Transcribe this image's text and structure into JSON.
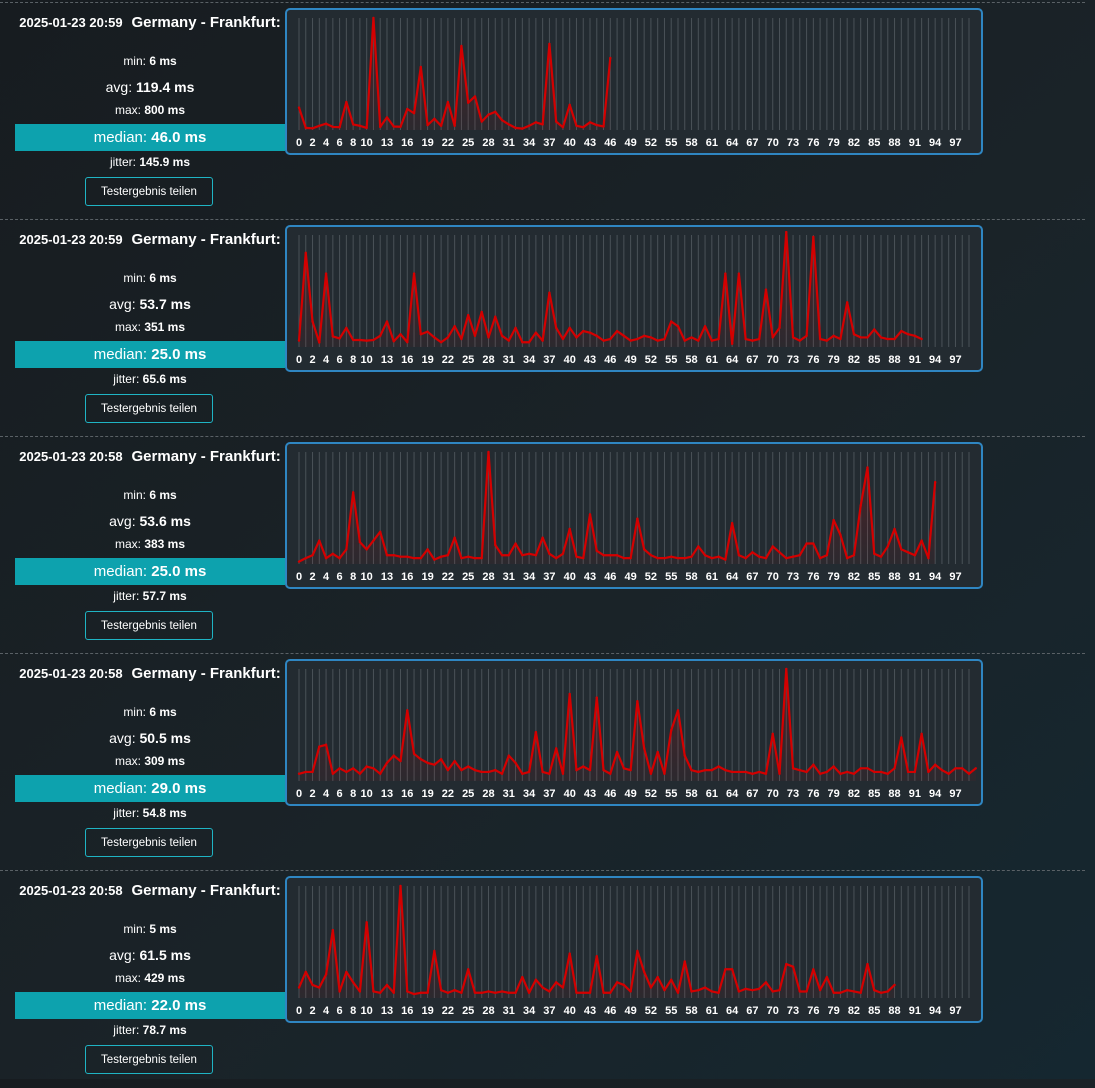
{
  "share_label": "Testergebnis teilen",
  "colors": {
    "accent": "#0da2ae",
    "line": "#d40000",
    "border": "#2f86c2"
  },
  "results": [
    {
      "datetime": "2025-01-23 20:59",
      "location": "Germany - Frankfurt:",
      "min_label": "min:",
      "min": "6 ms",
      "avg_label": "avg:",
      "avg": "119.4 ms",
      "max_label": "max:",
      "max": "800 ms",
      "median_label": "median:",
      "median": "46.0 ms",
      "jitter_label": "jitter:",
      "jitter": "145.9 ms"
    },
    {
      "datetime": "2025-01-23 20:59",
      "location": "Germany - Frankfurt:",
      "min_label": "min:",
      "min": "6 ms",
      "avg_label": "avg:",
      "avg": "53.7 ms",
      "max_label": "max:",
      "max": "351 ms",
      "median_label": "median:",
      "median": "25.0 ms",
      "jitter_label": "jitter:",
      "jitter": "65.6 ms"
    },
    {
      "datetime": "2025-01-23 20:58",
      "location": "Germany - Frankfurt:",
      "min_label": "min:",
      "min": "6 ms",
      "avg_label": "avg:",
      "avg": "53.6 ms",
      "max_label": "max:",
      "max": "383 ms",
      "median_label": "median:",
      "median": "25.0 ms",
      "jitter_label": "jitter:",
      "jitter": "57.7 ms"
    },
    {
      "datetime": "2025-01-23 20:58",
      "location": "Germany - Frankfurt:",
      "min_label": "min:",
      "min": "6 ms",
      "avg_label": "avg:",
      "avg": "50.5 ms",
      "max_label": "max:",
      "max": "309 ms",
      "median_label": "median:",
      "median": "29.0 ms",
      "jitter_label": "jitter:",
      "jitter": "54.8 ms"
    },
    {
      "datetime": "2025-01-23 20:58",
      "location": "Germany - Frankfurt:",
      "min_label": "min:",
      "min": "5 ms",
      "avg_label": "avg:",
      "avg": "61.5 ms",
      "max_label": "max:",
      "max": "429 ms",
      "median_label": "median:",
      "median": "22.0 ms",
      "jitter_label": "jitter:",
      "jitter": "78.7 ms"
    }
  ],
  "chart_data": [
    {
      "type": "line",
      "x_ticks": [
        0,
        2,
        4,
        6,
        8,
        10,
        13,
        16,
        19,
        22,
        25,
        28,
        31,
        34,
        37,
        40,
        43,
        46,
        49,
        52,
        55,
        58,
        61,
        64,
        67,
        70,
        73,
        76,
        79,
        82,
        85,
        88,
        91,
        94,
        97
      ],
      "xlim": [
        0,
        99
      ],
      "ylim": [
        0,
        800
      ],
      "values": [
        160,
        15,
        12,
        30,
        45,
        22,
        20,
        200,
        40,
        30,
        15,
        800,
        22,
        90,
        25,
        23,
        150,
        120,
        450,
        35,
        80,
        30,
        200,
        30,
        600,
        195,
        240,
        60,
        110,
        130,
        70,
        40,
        15,
        10,
        30,
        55,
        40,
        615,
        60,
        20,
        180,
        30,
        20,
        55,
        35,
        25,
        515
      ]
    },
    {
      "type": "line",
      "x_ticks": [
        0,
        2,
        4,
        6,
        8,
        10,
        13,
        16,
        19,
        22,
        25,
        28,
        31,
        34,
        37,
        40,
        43,
        46,
        49,
        52,
        55,
        58,
        61,
        64,
        67,
        70,
        73,
        76,
        79,
        82,
        85,
        88,
        91,
        94,
        97
      ],
      "xlim": [
        0,
        99
      ],
      "ylim": [
        0,
        351
      ],
      "values": [
        20,
        295,
        80,
        14,
        230,
        33,
        27,
        60,
        22,
        22,
        20,
        22,
        35,
        80,
        18,
        40,
        15,
        230,
        40,
        48,
        30,
        15,
        30,
        65,
        25,
        100,
        35,
        110,
        30,
        95,
        35,
        20,
        60,
        15,
        15,
        45,
        20,
        170,
        60,
        25,
        60,
        30,
        50,
        45,
        35,
        20,
        25,
        50,
        35,
        20,
        25,
        35,
        30,
        20,
        25,
        80,
        65,
        20,
        30,
        20,
        65,
        20,
        25,
        230,
        10,
        230,
        25,
        20,
        25,
        180,
        30,
        60,
        360,
        30,
        20,
        35,
        345,
        25,
        20,
        35,
        25,
        140,
        40,
        30,
        30,
        55,
        30,
        25,
        25,
        50,
        40,
        35,
        25
      ]
    },
    {
      "type": "line",
      "x_ticks": [
        0,
        2,
        4,
        6,
        8,
        10,
        13,
        16,
        19,
        22,
        25,
        28,
        31,
        34,
        37,
        40,
        43,
        46,
        49,
        52,
        55,
        58,
        61,
        64,
        67,
        70,
        73,
        76,
        79,
        82,
        85,
        88,
        91,
        94,
        97
      ],
      "xlim": [
        0,
        99
      ],
      "ylim": [
        0,
        383
      ],
      "values": [
        8,
        20,
        30,
        80,
        20,
        35,
        20,
        50,
        245,
        75,
        50,
        80,
        110,
        30,
        30,
        25,
        25,
        20,
        20,
        50,
        15,
        25,
        30,
        90,
        20,
        25,
        20,
        20,
        383,
        65,
        30,
        30,
        70,
        30,
        35,
        30,
        90,
        35,
        20,
        35,
        120,
        25,
        20,
        170,
        45,
        30,
        30,
        30,
        20,
        20,
        155,
        50,
        30,
        20,
        20,
        25,
        20,
        20,
        25,
        60,
        30,
        20,
        25,
        15,
        140,
        30,
        20,
        40,
        25,
        20,
        60,
        40,
        20,
        25,
        30,
        70,
        70,
        20,
        30,
        150,
        100,
        20,
        30,
        200,
        330,
        35,
        25,
        60,
        120,
        50,
        40,
        30,
        80,
        20,
        280
      ]
    },
    {
      "type": "line",
      "x_ticks": [
        0,
        2,
        4,
        6,
        8,
        10,
        13,
        16,
        19,
        22,
        25,
        28,
        31,
        34,
        37,
        40,
        43,
        46,
        49,
        52,
        55,
        58,
        61,
        64,
        67,
        70,
        73,
        76,
        79,
        82,
        85,
        88,
        91,
        94,
        97
      ],
      "xlim": [
        0,
        99
      ],
      "ylim": [
        0,
        309
      ],
      "values": [
        20,
        25,
        25,
        95,
        100,
        20,
        35,
        25,
        35,
        20,
        40,
        35,
        20,
        50,
        70,
        55,
        195,
        75,
        60,
        50,
        45,
        60,
        30,
        55,
        30,
        40,
        30,
        25,
        25,
        30,
        20,
        70,
        50,
        20,
        25,
        135,
        25,
        20,
        90,
        20,
        240,
        30,
        40,
        30,
        230,
        30,
        20,
        80,
        35,
        30,
        220,
        90,
        20,
        80,
        20,
        140,
        195,
        70,
        30,
        25,
        30,
        30,
        40,
        30,
        25,
        25,
        25,
        20,
        25,
        20,
        130,
        20,
        309,
        35,
        30,
        25,
        45,
        20,
        25,
        40,
        20,
        25,
        20,
        35,
        35,
        25,
        25,
        20,
        35,
        120,
        25,
        25,
        130,
        25,
        45,
        30,
        20,
        35,
        35,
        20,
        35
      ]
    },
    {
      "type": "line",
      "x_ticks": [
        0,
        2,
        4,
        6,
        8,
        10,
        13,
        16,
        19,
        22,
        25,
        28,
        31,
        34,
        37,
        40,
        43,
        46,
        49,
        52,
        55,
        58,
        61,
        64,
        67,
        70,
        73,
        76,
        79,
        82,
        85,
        88,
        91,
        94,
        97
      ],
      "xlim": [
        0,
        99
      ],
      "ylim": [
        0,
        429
      ],
      "values": [
        40,
        100,
        50,
        40,
        90,
        260,
        25,
        100,
        60,
        25,
        290,
        25,
        20,
        50,
        20,
        429,
        25,
        15,
        20,
        20,
        180,
        30,
        20,
        30,
        20,
        110,
        20,
        20,
        25,
        20,
        25,
        20,
        20,
        80,
        20,
        70,
        40,
        25,
        60,
        40,
        170,
        20,
        20,
        20,
        160,
        20,
        20,
        60,
        50,
        25,
        180,
        100,
        40,
        80,
        30,
        70,
        20,
        140,
        25,
        30,
        40,
        25,
        20,
        110,
        110,
        25,
        35,
        30,
        35,
        60,
        25,
        30,
        130,
        120,
        25,
        25,
        110,
        30,
        80,
        20,
        20,
        30,
        25,
        20,
        130,
        30,
        20,
        25,
        50
      ]
    }
  ]
}
